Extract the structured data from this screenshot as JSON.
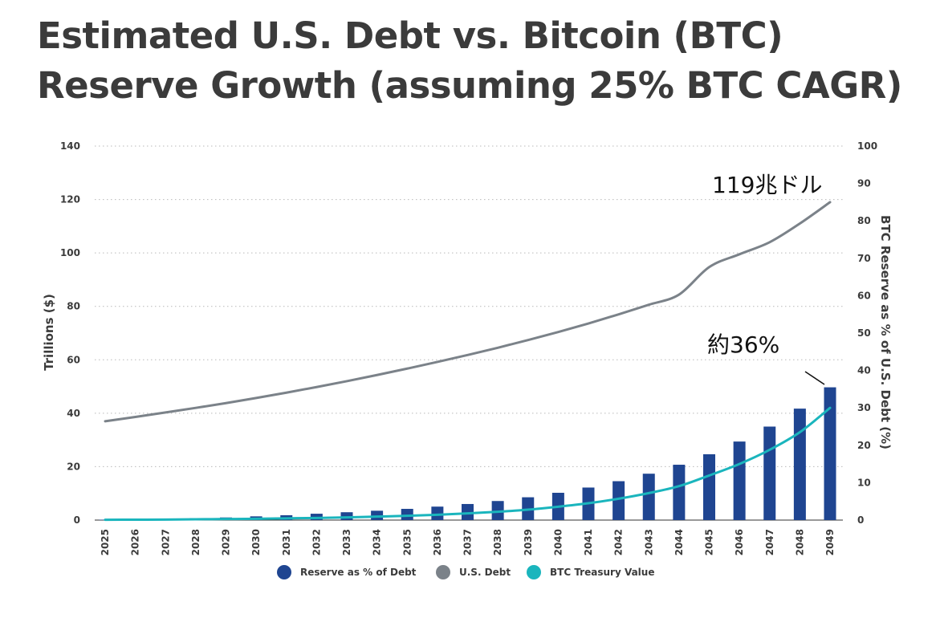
{
  "title": {
    "line1": "Estimated U.S. Debt vs. Bitcoin (BTC)",
    "line2": "Reserve Growth (assuming 25% BTC CAGR)"
  },
  "annotations": {
    "debt_end": "119兆ドル",
    "reserve_end": "約36%"
  },
  "colors": {
    "reserve": "#1f4591",
    "debt": "#7b8289",
    "btc": "#1ab5bd",
    "grid": "#b9b9b9",
    "text": "#3b3b3b"
  },
  "chart_data": {
    "type": "bar",
    "categories": [
      "2025",
      "2026",
      "2027",
      "2028",
      "2029",
      "2030",
      "2031",
      "2032",
      "2033",
      "2034",
      "2035",
      "2036",
      "2037",
      "2038",
      "2039",
      "2040",
      "2041",
      "2042",
      "2043",
      "2044",
      "2045",
      "2046",
      "2047",
      "2048",
      "2049"
    ],
    "xlabel": "",
    "ylabel": "Trillions ($)",
    "y2label": "BTC Reserve as % of U.S. Debt (%)",
    "ylim": [
      0,
      140
    ],
    "y2lim": [
      0,
      100
    ],
    "yticks": [
      0,
      20,
      40,
      60,
      80,
      100,
      120,
      140
    ],
    "y2ticks": [
      0,
      10,
      20,
      30,
      40,
      50,
      60,
      70,
      80,
      90,
      100
    ],
    "grid": true,
    "legend_position": "bottom",
    "series": [
      {
        "name": "Reserve as % of Debt",
        "type": "bar",
        "axis": "right",
        "values": [
          0.1,
          0.2,
          0.3,
          0.5,
          0.7,
          1.0,
          1.3,
          1.7,
          2.1,
          2.5,
          3.0,
          3.6,
          4.3,
          5.1,
          6.1,
          7.3,
          8.7,
          10.4,
          12.4,
          14.8,
          17.6,
          21.0,
          25.0,
          29.8,
          35.5
        ]
      },
      {
        "name": "U.S. Debt",
        "type": "line",
        "axis": "left",
        "values": [
          37.0,
          38.6,
          40.3,
          42.0,
          43.8,
          45.7,
          47.7,
          49.8,
          52.0,
          54.3,
          56.7,
          59.2,
          61.8,
          64.5,
          67.4,
          70.4,
          73.6,
          77.0,
          80.6,
          84.4,
          94.7,
          99.5,
          104.0,
          111.0,
          119.0
        ]
      },
      {
        "name": "BTC Treasury Value",
        "type": "line",
        "axis": "left",
        "values": [
          0.1,
          0.15,
          0.2,
          0.3,
          0.4,
          0.5,
          0.65,
          0.8,
          1.0,
          1.3,
          1.6,
          2.0,
          2.5,
          3.1,
          3.9,
          5.0,
          6.3,
          8.0,
          10.1,
          12.7,
          16.7,
          21.0,
          26.3,
          32.9,
          42.0
        ]
      }
    ]
  }
}
